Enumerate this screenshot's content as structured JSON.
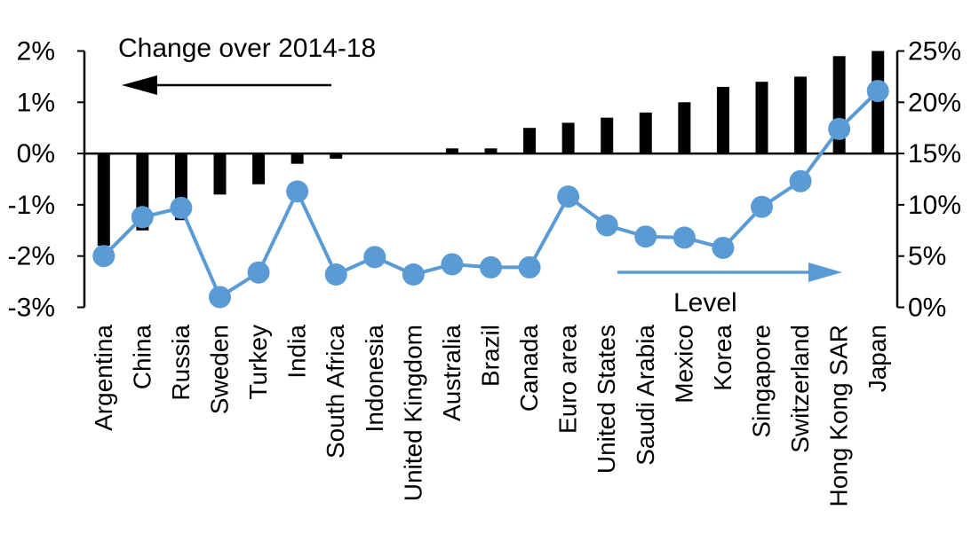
{
  "chart_data": {
    "type": "bar",
    "subtype": "bar-line-combo",
    "categories": [
      "Argentina",
      "China",
      "Russia",
      "Sweden",
      "Turkey",
      "India",
      "South Africa",
      "Indonesia",
      "United Kingdom",
      "Australia",
      "Brazil",
      "Canada",
      "Euro area",
      "United States",
      "Saudi Arabia",
      "Mexico",
      "Korea",
      "Singapore",
      "Switzerland",
      "Hong Kong SAR",
      "Japan"
    ],
    "series": [
      {
        "name": "Change over 2014-18",
        "type": "bar",
        "axis": "left",
        "color": "#000000",
        "values": [
          -1.8,
          -1.5,
          -1.3,
          -0.8,
          -0.6,
          -0.2,
          -0.1,
          0,
          0,
          0.1,
          0.1,
          0.5,
          0.6,
          0.7,
          0.8,
          1.0,
          1.3,
          1.4,
          1.5,
          1.9,
          2.0
        ]
      },
      {
        "name": "Level",
        "type": "line",
        "axis": "right",
        "color": "#5B9BD5",
        "values": [
          5.0,
          8.8,
          9.7,
          1.0,
          3.4,
          11.3,
          3.2,
          4.9,
          3.2,
          4.2,
          3.9,
          3.9,
          10.8,
          8.0,
          6.9,
          6.8,
          5.8,
          9.8,
          12.3,
          17.4,
          21.1
        ]
      }
    ],
    "left_axis": {
      "min": -3,
      "max": 2,
      "tick_values": [
        2,
        1,
        0,
        -1,
        -2,
        -3
      ],
      "ticks": [
        "2%",
        "1%",
        "0%",
        "-1%",
        "-2%",
        "-3%"
      ]
    },
    "right_axis": {
      "min": 0,
      "max": 25,
      "tick_values": [
        25,
        20,
        15,
        10,
        5,
        0
      ],
      "ticks": [
        "25%",
        "20%",
        "15%",
        "10%",
        "5%",
        "0%"
      ]
    },
    "annotations": {
      "bar_label": "Change over 2014-18",
      "bar_arrow_direction": "left",
      "line_label": "Level",
      "line_arrow_direction": "right"
    },
    "grid": "off",
    "legend": "none",
    "background": "#ffffff"
  }
}
